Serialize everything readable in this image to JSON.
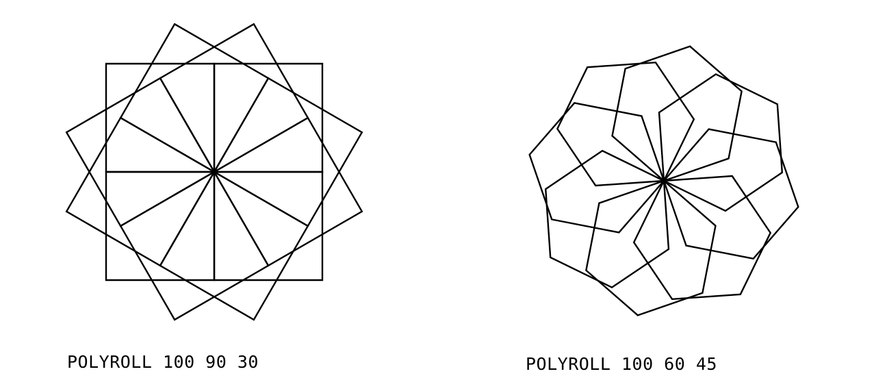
{
  "colors": {
    "ink": "#000000",
    "background": "#ffffff"
  },
  "figures": [
    {
      "caption": "POLYROLL 100 90 30",
      "size": 100,
      "angle": 90,
      "roll": 30
    },
    {
      "caption": "POLYROLL 100 60 45",
      "size": 100,
      "angle": 60,
      "roll": 45
    }
  ]
}
